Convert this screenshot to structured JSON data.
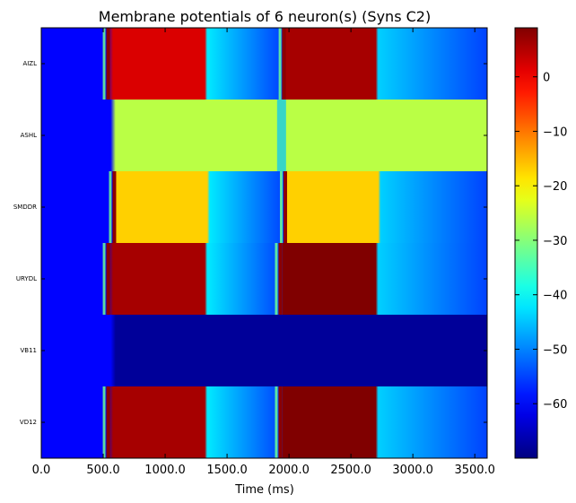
{
  "chart_data": {
    "type": "heatmap",
    "title": "Membrane potentials of 6 neuron(s) (Syns C2)",
    "xlabel": "Time (ms)",
    "ylabel": "",
    "xlim": [
      0,
      3600
    ],
    "x_ticks": [
      0,
      500,
      1000,
      1500,
      2000,
      2500,
      3000,
      3500
    ],
    "x_tick_labels": [
      "0.0",
      "500.0",
      "1000.0",
      "1500.0",
      "2000.0",
      "2500.0",
      "3000.0",
      "3500.0"
    ],
    "rows": [
      "AIZL",
      "ASHL",
      "SMDDR",
      "URYDL",
      "VB11",
      "VD12"
    ],
    "colorbar": {
      "colormap": "jet",
      "range": [
        -70,
        9
      ],
      "ticks": [
        0,
        -10,
        -20,
        -30,
        -40,
        -50,
        -60
      ],
      "tick_labels": [
        "0",
        "−10",
        "−20",
        "−30",
        "−40",
        "−50",
        "−60"
      ]
    },
    "series": [
      {
        "name": "AIZL",
        "segments": [
          {
            "x": [
              0,
              520
            ],
            "v": -60
          },
          {
            "x": [
              580,
              1320
            ],
            "v": 2
          },
          {
            "x": [
              1340,
              1940
            ],
            "v_start": -42,
            "v_end": -55
          },
          {
            "x": [
              1950,
              2700
            ],
            "v": 6
          },
          {
            "x": [
              2720,
              3600
            ],
            "v_start": -44,
            "v_end": -55
          }
        ],
        "spikes": [
          540,
          1960
        ]
      },
      {
        "name": "ASHL",
        "segments": [
          {
            "x": [
              0,
              560
            ],
            "v": -60
          },
          {
            "x": [
              600,
              1920
            ],
            "v": -26
          },
          {
            "x": [
              1960,
              3600
            ],
            "v": -26
          }
        ],
        "dips": [
          1940
        ]
      },
      {
        "name": "SMDDR",
        "segments": [
          {
            "x": [
              0,
              580
            ],
            "v": -60
          },
          {
            "x": [
              600,
              1340
            ],
            "v": -17
          },
          {
            "x": [
              1360,
              1960
            ],
            "v_start": -42,
            "v_end": -55
          },
          {
            "x": [
              1980,
              2720
            ],
            "v": -17
          },
          {
            "x": [
              2740,
              3600
            ],
            "v_start": -44,
            "v_end": -55
          }
        ],
        "spikes": [
          590,
          1970
        ]
      },
      {
        "name": "URYDL",
        "segments": [
          {
            "x": [
              0,
              520
            ],
            "v": -60
          },
          {
            "x": [
              580,
              1320
            ],
            "v": 6
          },
          {
            "x": [
              1340,
              1940
            ],
            "v_start": -42,
            "v_end": -55
          },
          {
            "x": [
              1950,
              2700
            ],
            "v": 9
          },
          {
            "x": [
              2720,
              3600
            ],
            "v_start": -44,
            "v_end": -55
          }
        ],
        "spikes": [
          540,
          1930
        ]
      },
      {
        "name": "VB11",
        "segments": [
          {
            "x": [
              0,
              560
            ],
            "v": -60
          },
          {
            "x": [
              600,
              3600
            ],
            "v": -68
          }
        ]
      },
      {
        "name": "VD12",
        "segments": [
          {
            "x": [
              0,
              520
            ],
            "v": -60
          },
          {
            "x": [
              580,
              1320
            ],
            "v": 6
          },
          {
            "x": [
              1340,
              1940
            ],
            "v_start": -42,
            "v_end": -55
          },
          {
            "x": [
              1950,
              2700
            ],
            "v": 9
          },
          {
            "x": [
              2720,
              3600
            ],
            "v_start": -44,
            "v_end": -55
          }
        ],
        "spikes": [
          540,
          1930
        ]
      }
    ]
  }
}
